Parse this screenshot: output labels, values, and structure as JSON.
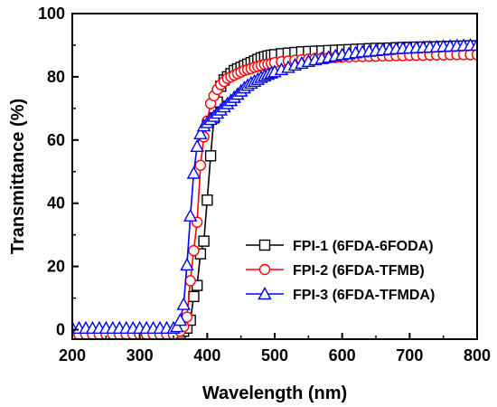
{
  "chart_data": {
    "type": "line",
    "xlabel": "Wavelength (nm)",
    "ylabel": "Transmittance (%)",
    "xlim": [
      200,
      800
    ],
    "ylim": [
      -3,
      100
    ],
    "xticks": [
      200,
      300,
      400,
      500,
      600,
      700,
      800
    ],
    "yticks": [
      0,
      20,
      40,
      60,
      80,
      100
    ],
    "grid": false,
    "legend_position": "lower-right",
    "series": [
      {
        "name": "FPI-1 (6FDA-6FODA)",
        "color": "#000000",
        "marker": "square",
        "x": [
          200,
          210,
          220,
          230,
          240,
          250,
          260,
          270,
          280,
          290,
          300,
          310,
          320,
          330,
          340,
          350,
          360,
          365,
          370,
          375,
          380,
          385,
          390,
          395,
          400,
          405,
          410,
          415,
          420,
          425,
          430,
          435,
          440,
          445,
          450,
          455,
          460,
          465,
          470,
          475,
          480,
          485,
          490,
          495,
          500,
          510,
          520,
          530,
          540,
          550,
          560,
          570,
          580,
          590,
          600,
          610,
          620,
          630,
          640,
          650,
          660,
          670,
          680,
          690,
          700,
          710,
          720,
          730,
          740,
          750,
          760,
          770,
          780,
          790,
          800
        ],
        "y": [
          -1.5,
          -1.5,
          -1.5,
          -1.5,
          -1.5,
          -1.5,
          -1.5,
          -1.5,
          -1.5,
          -1.5,
          -1.5,
          -1.5,
          -1.5,
          -1.5,
          -1.5,
          -1.5,
          -1.2,
          -0.5,
          0.5,
          3,
          10.5,
          14,
          24,
          28,
          41,
          55,
          67,
          72,
          77,
          79,
          80,
          81,
          82,
          82.5,
          83,
          83.5,
          84,
          84.5,
          85,
          85.5,
          86,
          86.3,
          86.6,
          86.8,
          87,
          87.3,
          87.5,
          87.7,
          87.9,
          88,
          88.1,
          88.2,
          88.3,
          88.4,
          88.5,
          88.6,
          88.7,
          88.8,
          88.9,
          89,
          89,
          89.1,
          89.2,
          89.3,
          89.3,
          89.4,
          89.4,
          89.5,
          89.5,
          89.6,
          89.6,
          89.7,
          89.7,
          89.8,
          89.8
        ]
      },
      {
        "name": "FPI-2 (6FDA-TFMB)",
        "color": "#ff0000",
        "marker": "circle",
        "x": [
          200,
          210,
          220,
          230,
          240,
          250,
          260,
          270,
          280,
          290,
          300,
          310,
          320,
          330,
          340,
          350,
          360,
          365,
          370,
          375,
          380,
          385,
          390,
          395,
          400,
          405,
          410,
          415,
          420,
          425,
          430,
          435,
          440,
          445,
          450,
          455,
          460,
          465,
          470,
          475,
          480,
          485,
          490,
          495,
          500,
          510,
          520,
          530,
          540,
          550,
          560,
          570,
          580,
          590,
          600,
          610,
          620,
          630,
          640,
          650,
          660,
          670,
          680,
          690,
          700,
          710,
          720,
          730,
          740,
          750,
          760,
          770,
          780,
          790,
          800
        ],
        "y": [
          -1.5,
          -1.5,
          -1.5,
          -1.5,
          -1.5,
          -1.5,
          -1.5,
          -1.5,
          -1.5,
          -1.5,
          -1.5,
          -1.5,
          -1.5,
          -1.5,
          -1.5,
          -1.5,
          -0.5,
          1,
          4,
          15.5,
          25,
          34,
          52,
          61,
          66,
          71.5,
          74,
          76,
          77.5,
          78.5,
          79.5,
          80,
          80.5,
          81,
          81.5,
          82,
          82.3,
          82.6,
          83,
          83.3,
          83.6,
          83.9,
          84,
          84.2,
          84.5,
          84.8,
          85,
          85.2,
          85.4,
          85.6,
          85.8,
          85.9,
          86,
          86.1,
          86.2,
          86.3,
          86.4,
          86.4,
          86.5,
          86.5,
          86.6,
          86.6,
          86.7,
          86.7,
          86.8,
          86.8,
          86.8,
          86.9,
          86.9,
          86.9,
          87,
          87,
          87,
          87,
          87
        ]
      },
      {
        "name": "FPI-3 (6FDA-TFMDA)",
        "color": "#0000ff",
        "marker": "triangle",
        "x": [
          200,
          210,
          220,
          230,
          240,
          250,
          260,
          270,
          280,
          290,
          300,
          310,
          320,
          330,
          340,
          350,
          355,
          360,
          365,
          370,
          375,
          380,
          385,
          390,
          395,
          400,
          405,
          410,
          415,
          420,
          425,
          430,
          435,
          440,
          445,
          450,
          455,
          460,
          465,
          470,
          475,
          480,
          485,
          490,
          495,
          500,
          510,
          520,
          530,
          540,
          550,
          560,
          570,
          580,
          590,
          600,
          610,
          620,
          630,
          640,
          650,
          660,
          670,
          680,
          690,
          700,
          710,
          720,
          730,
          740,
          750,
          760,
          770,
          780,
          790,
          800
        ],
        "y": [
          0.5,
          0.5,
          0.5,
          0.5,
          0.5,
          0.5,
          0.5,
          0.5,
          0.5,
          0.5,
          0.5,
          0.5,
          0.5,
          0.5,
          0.5,
          0.5,
          1,
          3,
          8,
          20.5,
          36,
          49.5,
          58,
          62,
          64.5,
          65.5,
          66.5,
          67.5,
          68.5,
          69.5,
          70.5,
          71.5,
          72.5,
          73.5,
          74.5,
          75.5,
          76.5,
          77.3,
          78,
          78.6,
          79.2,
          79.8,
          80.3,
          80.8,
          81.2,
          81.6,
          82.3,
          83,
          83.7,
          84.3,
          84.9,
          85.4,
          85.8,
          86.2,
          86.6,
          87,
          87.3,
          87.6,
          87.9,
          88.1,
          88.3,
          88.5,
          88.7,
          88.9,
          89,
          89.1,
          89.2,
          89.3,
          89.4,
          89.5,
          89.6,
          89.7,
          89.8,
          89.9,
          90,
          90
        ]
      }
    ]
  }
}
